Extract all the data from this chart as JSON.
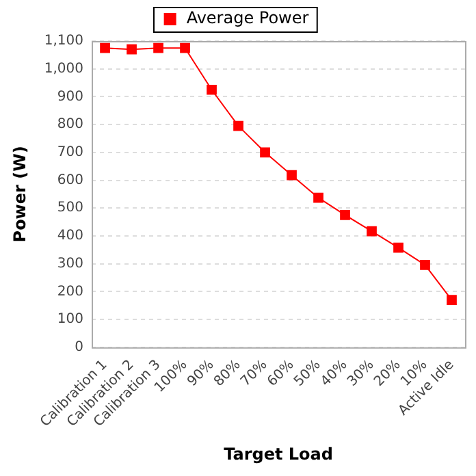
{
  "chart_data": {
    "type": "line",
    "xlabel": "Target Load",
    "ylabel": "Power (W)",
    "categories": [
      "Calibration 1",
      "Calibration 2",
      "Calibration 3",
      "100%",
      "90%",
      "80%",
      "70%",
      "60%",
      "50%",
      "40%",
      "30%",
      "20%",
      "10%",
      "Active Idle"
    ],
    "series": [
      {
        "name": "Average Power",
        "color": "#ff0000",
        "values": [
          1075,
          1070,
          1075,
          1075,
          925,
          795,
          700,
          618,
          537,
          475,
          417,
          358,
          296,
          170
        ]
      }
    ],
    "ylim": [
      0,
      1100
    ],
    "yticks": [
      0,
      100,
      200,
      300,
      400,
      500,
      600,
      700,
      800,
      900,
      {
        "value": 1000,
        "label": "1,000"
      },
      {
        "value": 1100,
        "label": "1,100"
      }
    ],
    "grid": "y",
    "legend": "top",
    "marker": "square",
    "line_style": "solid"
  }
}
